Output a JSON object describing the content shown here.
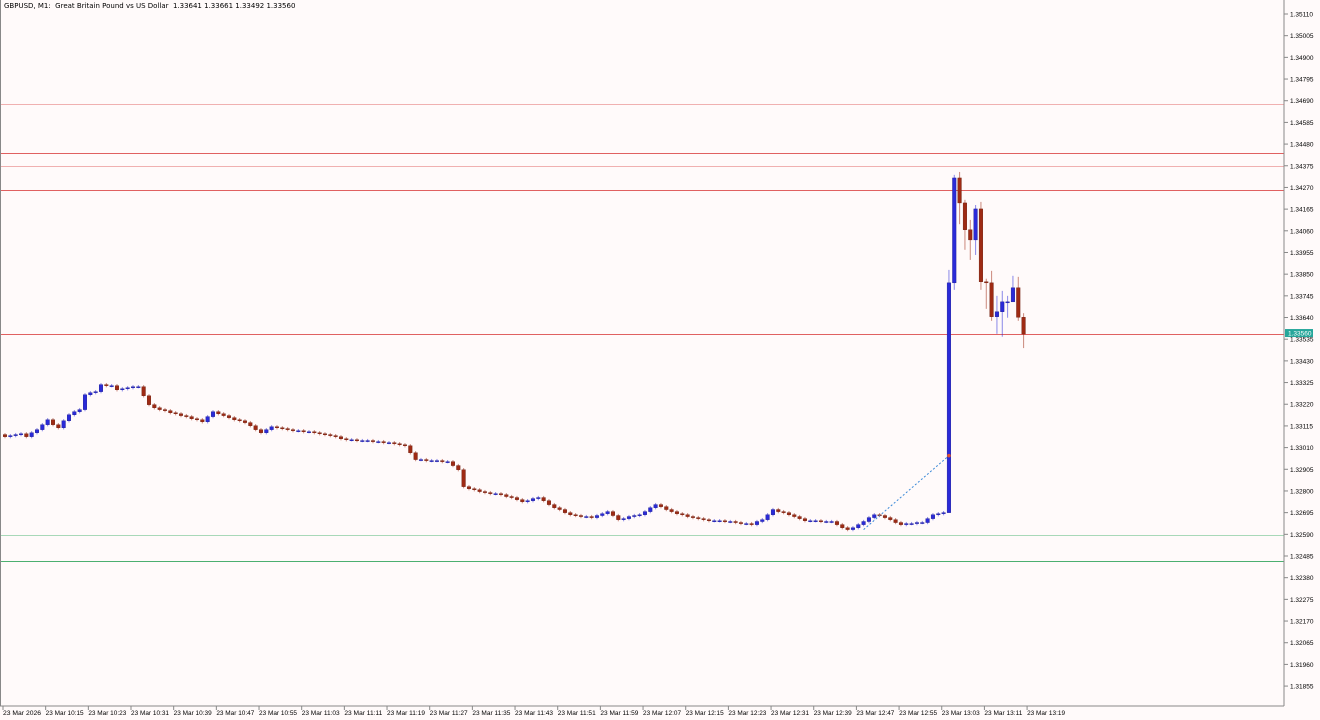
{
  "header": {
    "symbol": "GBPUSD, M1:",
    "description": "Great Britain Pound vs US Dollar",
    "ohlc_text": "1.33641 1.33661 1.33492 1.33560"
  },
  "colors": {
    "bull": "#2a2ad8",
    "bear": "#9e2a14",
    "background": "#fffafa",
    "current_price": "#26a69a",
    "resistance": "#e06060",
    "resistance_light": "#f0b0b0",
    "support": "#4caf70",
    "support_light": "#a8d8b8",
    "trendline": "#3c8ad8"
  },
  "chart_data": {
    "type": "candlestick",
    "title": "GBPUSD, M1",
    "ylim": [
      1.318,
      1.3516
    ],
    "price_ticks": [
      "1.35110",
      "1.35005",
      "1.34900",
      "1.34795",
      "1.34690",
      "1.34585",
      "1.34480",
      "1.34375",
      "1.34270",
      "1.34165",
      "1.34060",
      "1.33955",
      "1.33850",
      "1.33745",
      "1.33640",
      "1.33535",
      "1.33430",
      "1.33325",
      "1.33220",
      "1.33115",
      "1.33010",
      "1.32905",
      "1.32800",
      "1.32695",
      "1.32590",
      "1.32485",
      "1.32380",
      "1.32275",
      "1.32170",
      "1.32065",
      "1.31960",
      "1.31855"
    ],
    "time_ticks": [
      "23 Mar 2026",
      "23 Mar 10:15",
      "23 Mar 10:23",
      "23 Mar 10:31",
      "23 Mar 10:39",
      "23 Mar 10:47",
      "23 Mar 10:55",
      "23 Mar 11:03",
      "23 Mar 11:11",
      "23 Mar 11:19",
      "23 Mar 11:27",
      "23 Mar 11:35",
      "23 Mar 11:43",
      "23 Mar 11:51",
      "23 Mar 11:59",
      "23 Mar 12:07",
      "23 Mar 12:15",
      "23 Mar 12:23",
      "23 Mar 12:31",
      "23 Mar 12:39",
      "23 Mar 12:47",
      "23 Mar 12:55",
      "23 Mar 13:03",
      "23 Mar 13:11",
      "23 Mar 13:19"
    ],
    "first_open": 1.33073,
    "close": [
      1.33063,
      1.33068,
      1.33073,
      1.33077,
      1.33063,
      1.33082,
      1.33097,
      1.33121,
      1.33145,
      1.33121,
      1.33106,
      1.3314,
      1.33169,
      1.33184,
      1.33194,
      1.33266,
      1.33276,
      1.33281,
      1.33315,
      1.3331,
      1.3331,
      1.3329,
      1.33295,
      1.333,
      1.33305,
      1.33305,
      1.33261,
      1.33218,
      1.33203,
      1.33194,
      1.33189,
      1.33179,
      1.33174,
      1.33165,
      1.3316,
      1.3315,
      1.33145,
      1.33135,
      1.3316,
      1.33184,
      1.33174,
      1.33165,
      1.33155,
      1.33145,
      1.3314,
      1.33131,
      1.33116,
      1.33097,
      1.33082,
      1.33097,
      1.33111,
      1.33106,
      1.33102,
      1.33097,
      1.33092,
      1.33092,
      1.33087,
      1.33087,
      1.33082,
      1.33077,
      1.33073,
      1.33068,
      1.33063,
      1.33053,
      1.33048,
      1.33048,
      1.33044,
      1.33044,
      1.33044,
      1.33039,
      1.33039,
      1.33034,
      1.33034,
      1.33029,
      1.33024,
      1.33019,
      1.32985,
      1.32952,
      1.32952,
      1.32947,
      1.32947,
      1.32947,
      1.32942,
      1.32942,
      1.32923,
      1.32903,
      1.32821,
      1.32811,
      1.32806,
      1.32797,
      1.32792,
      1.32787,
      1.32787,
      1.32782,
      1.32773,
      1.32768,
      1.32758,
      1.32748,
      1.32753,
      1.32763,
      1.32768,
      1.32753,
      1.32734,
      1.32719,
      1.3271,
      1.32695,
      1.32685,
      1.32681,
      1.32676,
      1.32676,
      1.32671,
      1.32681,
      1.3269,
      1.327,
      1.32681,
      1.32661,
      1.32666,
      1.32676,
      1.32681,
      1.32685,
      1.327,
      1.32719,
      1.32734,
      1.32724,
      1.3271,
      1.327,
      1.3269,
      1.32685,
      1.32676,
      1.32671,
      1.32666,
      1.32661,
      1.32656,
      1.32656,
      1.32656,
      1.32652,
      1.32652,
      1.32647,
      1.32642,
      1.32642,
      1.32637,
      1.32652,
      1.32661,
      1.32685,
      1.3271,
      1.327,
      1.32695,
      1.32685,
      1.32676,
      1.32666,
      1.32656,
      1.32656,
      1.32656,
      1.32652,
      1.32652,
      1.32652,
      1.32637,
      1.32622,
      1.32613,
      1.32622,
      1.32637,
      1.32652,
      1.32671,
      1.32685,
      1.32681,
      1.32671,
      1.32661,
      1.32647,
      1.32637,
      1.32642,
      1.32642,
      1.32647,
      1.32647,
      1.32666,
      1.32685,
      1.3269,
      1.32695,
      1.33808,
      1.34316,
      1.34195,
      1.34065,
      1.34016,
      1.34166,
      1.33813,
      1.33808,
      1.33644,
      1.33668,
      1.33716,
      1.33716,
      1.33784,
      1.33641,
      1.3356
    ],
    "high_low_override": {
      "start_index": 177,
      "high": [
        1.33871,
        1.34331,
        1.34345,
        1.3421,
        1.34113,
        1.34185,
        1.342,
        1.33828,
        1.33866,
        1.33745,
        1.33769,
        1.33745,
        1.33842,
        1.33837,
        1.33661
      ],
      "low": [
        1.32695,
        1.33774,
        1.34092,
        1.33968,
        1.33919,
        1.33943,
        1.33774,
        1.33682,
        1.33624,
        1.33561,
        1.33547,
        1.33639,
        1.33716,
        1.33624,
        1.33492
      ]
    },
    "last_open": 1.33641,
    "current_price": "1.33560",
    "horizontal_levels": [
      {
        "price": 1.34674,
        "kind": "resistance_light"
      },
      {
        "price": 1.34437,
        "kind": "resistance"
      },
      {
        "price": 1.34374,
        "kind": "resistance_light"
      },
      {
        "price": 1.34258,
        "kind": "resistance"
      },
      {
        "price": 1.3356,
        "kind": "resistance"
      },
      {
        "price": 1.32587,
        "kind": "support_light"
      },
      {
        "price": 1.32461,
        "kind": "support"
      }
    ],
    "trendline": {
      "from_bar": 161,
      "from_price": 1.32613,
      "to_bar": 177,
      "to_price": 1.32971
    }
  }
}
